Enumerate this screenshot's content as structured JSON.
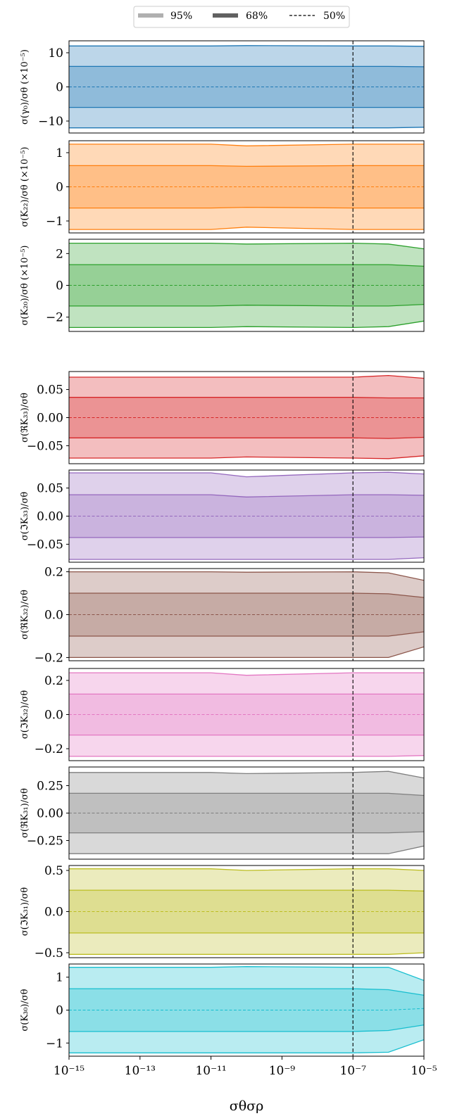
{
  "legend": {
    "items": [
      {
        "label": "95%",
        "style": "band95"
      },
      {
        "label": "68%",
        "style": "band68"
      },
      {
        "label": "50%",
        "style": "median"
      }
    ]
  },
  "chart_data": {
    "type": "area",
    "xscale": "log",
    "xlim": [
      1e-15,
      1e-05
    ],
    "xlabel": "σθσρ",
    "xticks": [
      1e-15,
      1e-13,
      1e-11,
      1e-09,
      1e-07,
      1e-05
    ],
    "xtick_labels": [
      "10⁻¹⁵",
      "10⁻¹³",
      "10⁻¹¹",
      "10⁻⁹",
      "10⁻⁷",
      "10⁻⁵"
    ],
    "vline_x": 1e-07,
    "panels": [
      {
        "ylabel": "σ(γ₀)/σθ (×10⁻⁵)",
        "color": "#1f77b4",
        "ylim": [
          -13.5,
          13.5
        ],
        "yticks": [
          10,
          0,
          -10
        ],
        "ytick_labels": [
          "10",
          "0",
          "−10"
        ],
        "x": [
          1e-15,
          1e-11,
          1e-10,
          1e-07,
          1e-06,
          1e-05
        ],
        "p97_5": [
          12.0,
          12.0,
          12.1,
          12.0,
          12.0,
          11.9
        ],
        "p84": [
          6.0,
          6.0,
          6.0,
          6.0,
          6.0,
          5.9
        ],
        "p50": [
          0.0,
          0.0,
          0.0,
          0.0,
          0.0,
          0.0
        ],
        "p16": [
          -6.0,
          -6.0,
          -6.0,
          -6.0,
          -6.0,
          -6.0
        ],
        "p2_5": [
          -12.0,
          -12.0,
          -12.0,
          -12.0,
          -12.0,
          -11.8
        ]
      },
      {
        "ylabel": "σ(K₂₂)/σθ (×10⁻⁵)",
        "color": "#ff7f0e",
        "ylim": [
          -1.35,
          1.35
        ],
        "yticks": [
          1,
          0,
          -1
        ],
        "ytick_labels": [
          "1",
          "0",
          "−1"
        ],
        "x": [
          1e-15,
          1e-11,
          1e-10,
          1e-07,
          1e-06,
          1e-05
        ],
        "p97_5": [
          1.25,
          1.25,
          1.2,
          1.25,
          1.25,
          1.25
        ],
        "p84": [
          0.62,
          0.62,
          0.6,
          0.62,
          0.62,
          0.62
        ],
        "p50": [
          0.0,
          0.0,
          0.0,
          0.0,
          0.0,
          0.0
        ],
        "p16": [
          -0.62,
          -0.62,
          -0.6,
          -0.62,
          -0.62,
          -0.62
        ],
        "p2_5": [
          -1.25,
          -1.25,
          -1.18,
          -1.25,
          -1.25,
          -1.25
        ]
      },
      {
        "ylabel": "σ(K₂₀)/σθ (×10⁻⁵)",
        "color": "#2ca02c",
        "ylim": [
          -2.9,
          2.9
        ],
        "yticks": [
          2,
          0,
          -2
        ],
        "ytick_labels": [
          "2",
          "0",
          "−2"
        ],
        "x": [
          1e-15,
          1e-11,
          1e-10,
          1e-07,
          1e-06,
          1e-05
        ],
        "p97_5": [
          2.65,
          2.65,
          2.6,
          2.65,
          2.6,
          2.3
        ],
        "p84": [
          1.3,
          1.3,
          1.3,
          1.3,
          1.3,
          1.2
        ],
        "p50": [
          0.0,
          0.0,
          0.0,
          0.0,
          0.0,
          0.0
        ],
        "p16": [
          -1.3,
          -1.3,
          -1.25,
          -1.3,
          -1.3,
          -1.2
        ],
        "p2_5": [
          -2.65,
          -2.65,
          -2.6,
          -2.65,
          -2.6,
          -2.25
        ]
      },
      {
        "ylabel": "σ(ℜK₃₃)/σθ",
        "color": "#d62728",
        "ylim": [
          -0.082,
          0.082
        ],
        "yticks": [
          0.05,
          0.0,
          -0.05
        ],
        "ytick_labels": [
          "0.05",
          "0.00",
          "−0.05"
        ],
        "x": [
          1e-15,
          1e-11,
          1e-10,
          1e-07,
          1e-06,
          1e-05
        ],
        "p97_5": [
          0.072,
          0.072,
          0.072,
          0.072,
          0.075,
          0.07
        ],
        "p84": [
          0.036,
          0.036,
          0.036,
          0.036,
          0.035,
          0.035
        ],
        "p50": [
          0.0,
          0.0,
          0.0,
          0.0,
          0.0,
          0.0
        ],
        "p16": [
          -0.036,
          -0.036,
          -0.036,
          -0.036,
          -0.037,
          -0.035
        ],
        "p2_5": [
          -0.072,
          -0.072,
          -0.07,
          -0.072,
          -0.073,
          -0.068
        ]
      },
      {
        "ylabel": "σ(ℑK₃₃)/σθ",
        "color": "#9467bd",
        "ylim": [
          -0.082,
          0.082
        ],
        "yticks": [
          0.05,
          0.0,
          -0.05
        ],
        "ytick_labels": [
          "0.05",
          "0.00",
          "−0.05"
        ],
        "x": [
          1e-15,
          1e-11,
          1e-10,
          1e-07,
          1e-06,
          1e-05
        ],
        "p97_5": [
          0.077,
          0.077,
          0.07,
          0.077,
          0.078,
          0.075
        ],
        "p84": [
          0.038,
          0.038,
          0.034,
          0.038,
          0.038,
          0.037
        ],
        "p50": [
          0.0,
          0.0,
          0.0,
          0.0,
          0.0,
          0.0
        ],
        "p16": [
          -0.038,
          -0.038,
          -0.038,
          -0.038,
          -0.038,
          -0.037
        ],
        "p2_5": [
          -0.077,
          -0.077,
          -0.077,
          -0.077,
          -0.077,
          -0.074
        ]
      },
      {
        "ylabel": "σ(ℜK₃₂)/σθ",
        "color": "#8c564b",
        "ylim": [
          -0.215,
          0.215
        ],
        "yticks": [
          0.2,
          0.0,
          -0.2
        ],
        "ytick_labels": [
          "0.2",
          "0.0",
          "−0.2"
        ],
        "x": [
          1e-15,
          1e-11,
          1e-10,
          1e-07,
          1e-06,
          1e-05
        ],
        "p97_5": [
          0.2,
          0.2,
          0.198,
          0.2,
          0.195,
          0.16
        ],
        "p84": [
          0.1,
          0.1,
          0.1,
          0.1,
          0.097,
          0.08
        ],
        "p50": [
          0.0,
          0.0,
          0.0,
          0.0,
          0.0,
          0.0
        ],
        "p16": [
          -0.1,
          -0.1,
          -0.1,
          -0.1,
          -0.1,
          -0.08
        ],
        "p2_5": [
          -0.2,
          -0.2,
          -0.2,
          -0.2,
          -0.2,
          -0.15
        ]
      },
      {
        "ylabel": "σ(ℑK₃₂)/σθ",
        "color": "#e377c2",
        "ylim": [
          -0.27,
          0.27
        ],
        "yticks": [
          0.2,
          0.0,
          -0.2
        ],
        "ytick_labels": [
          "0.2",
          "0.0",
          "−0.2"
        ],
        "x": [
          1e-15,
          1e-11,
          1e-10,
          1e-07,
          1e-06,
          1e-05
        ],
        "p97_5": [
          0.245,
          0.245,
          0.23,
          0.245,
          0.245,
          0.245
        ],
        "p84": [
          0.12,
          0.12,
          0.12,
          0.12,
          0.12,
          0.12
        ],
        "p50": [
          0.0,
          0.0,
          0.0,
          0.0,
          0.0,
          0.0
        ],
        "p16": [
          -0.12,
          -0.12,
          -0.12,
          -0.12,
          -0.12,
          -0.12
        ],
        "p2_5": [
          -0.245,
          -0.245,
          -0.245,
          -0.245,
          -0.245,
          -0.24
        ]
      },
      {
        "ylabel": "σ(ℜK₃₁)/σθ",
        "color": "#7f7f7f",
        "ylim": [
          -0.42,
          0.42
        ],
        "yticks": [
          0.25,
          0.0,
          -0.25
        ],
        "ytick_labels": [
          "0.25",
          "0.00",
          "−0.25"
        ],
        "x": [
          1e-15,
          1e-11,
          1e-10,
          1e-07,
          1e-06,
          1e-05
        ],
        "p97_5": [
          0.37,
          0.37,
          0.36,
          0.37,
          0.38,
          0.32
        ],
        "p84": [
          0.18,
          0.18,
          0.18,
          0.18,
          0.18,
          0.16
        ],
        "p50": [
          0.0,
          0.0,
          0.0,
          0.0,
          0.0,
          0.0
        ],
        "p16": [
          -0.18,
          -0.18,
          -0.18,
          -0.18,
          -0.18,
          -0.17
        ],
        "p2_5": [
          -0.37,
          -0.37,
          -0.37,
          -0.37,
          -0.37,
          -0.3
        ]
      },
      {
        "ylabel": "σ(ℑK₃₁)/σθ",
        "color": "#bcbd22",
        "ylim": [
          -0.56,
          0.56
        ],
        "yticks": [
          0.5,
          0.0,
          -0.5
        ],
        "ytick_labels": [
          "0.5",
          "0.0",
          "−0.5"
        ],
        "x": [
          1e-15,
          1e-11,
          1e-10,
          1e-07,
          1e-06,
          1e-05
        ],
        "p97_5": [
          0.52,
          0.52,
          0.5,
          0.52,
          0.52,
          0.5
        ],
        "p84": [
          0.26,
          0.26,
          0.26,
          0.26,
          0.26,
          0.25
        ],
        "p50": [
          0.0,
          0.0,
          0.0,
          0.0,
          0.0,
          0.0
        ],
        "p16": [
          -0.26,
          -0.26,
          -0.26,
          -0.26,
          -0.26,
          -0.26
        ],
        "p2_5": [
          -0.52,
          -0.52,
          -0.52,
          -0.52,
          -0.52,
          -0.5
        ]
      },
      {
        "ylabel": "σ(K₃₀)/σθ",
        "color": "#17becf",
        "ylim": [
          -1.4,
          1.4
        ],
        "yticks": [
          1,
          0,
          -1
        ],
        "ytick_labels": [
          "1",
          "0",
          "−1"
        ],
        "x": [
          1e-15,
          1e-11,
          1e-10,
          1e-07,
          1e-06,
          1e-05
        ],
        "p97_5": [
          1.3,
          1.3,
          1.32,
          1.3,
          1.3,
          0.9
        ],
        "p84": [
          0.65,
          0.65,
          0.65,
          0.65,
          0.62,
          0.45
        ],
        "p50": [
          0.0,
          0.0,
          0.0,
          0.0,
          0.0,
          0.05
        ],
        "p16": [
          -0.65,
          -0.65,
          -0.65,
          -0.65,
          -0.62,
          -0.45
        ],
        "p2_5": [
          -1.3,
          -1.3,
          -1.3,
          -1.3,
          -1.28,
          -0.9
        ]
      }
    ]
  }
}
